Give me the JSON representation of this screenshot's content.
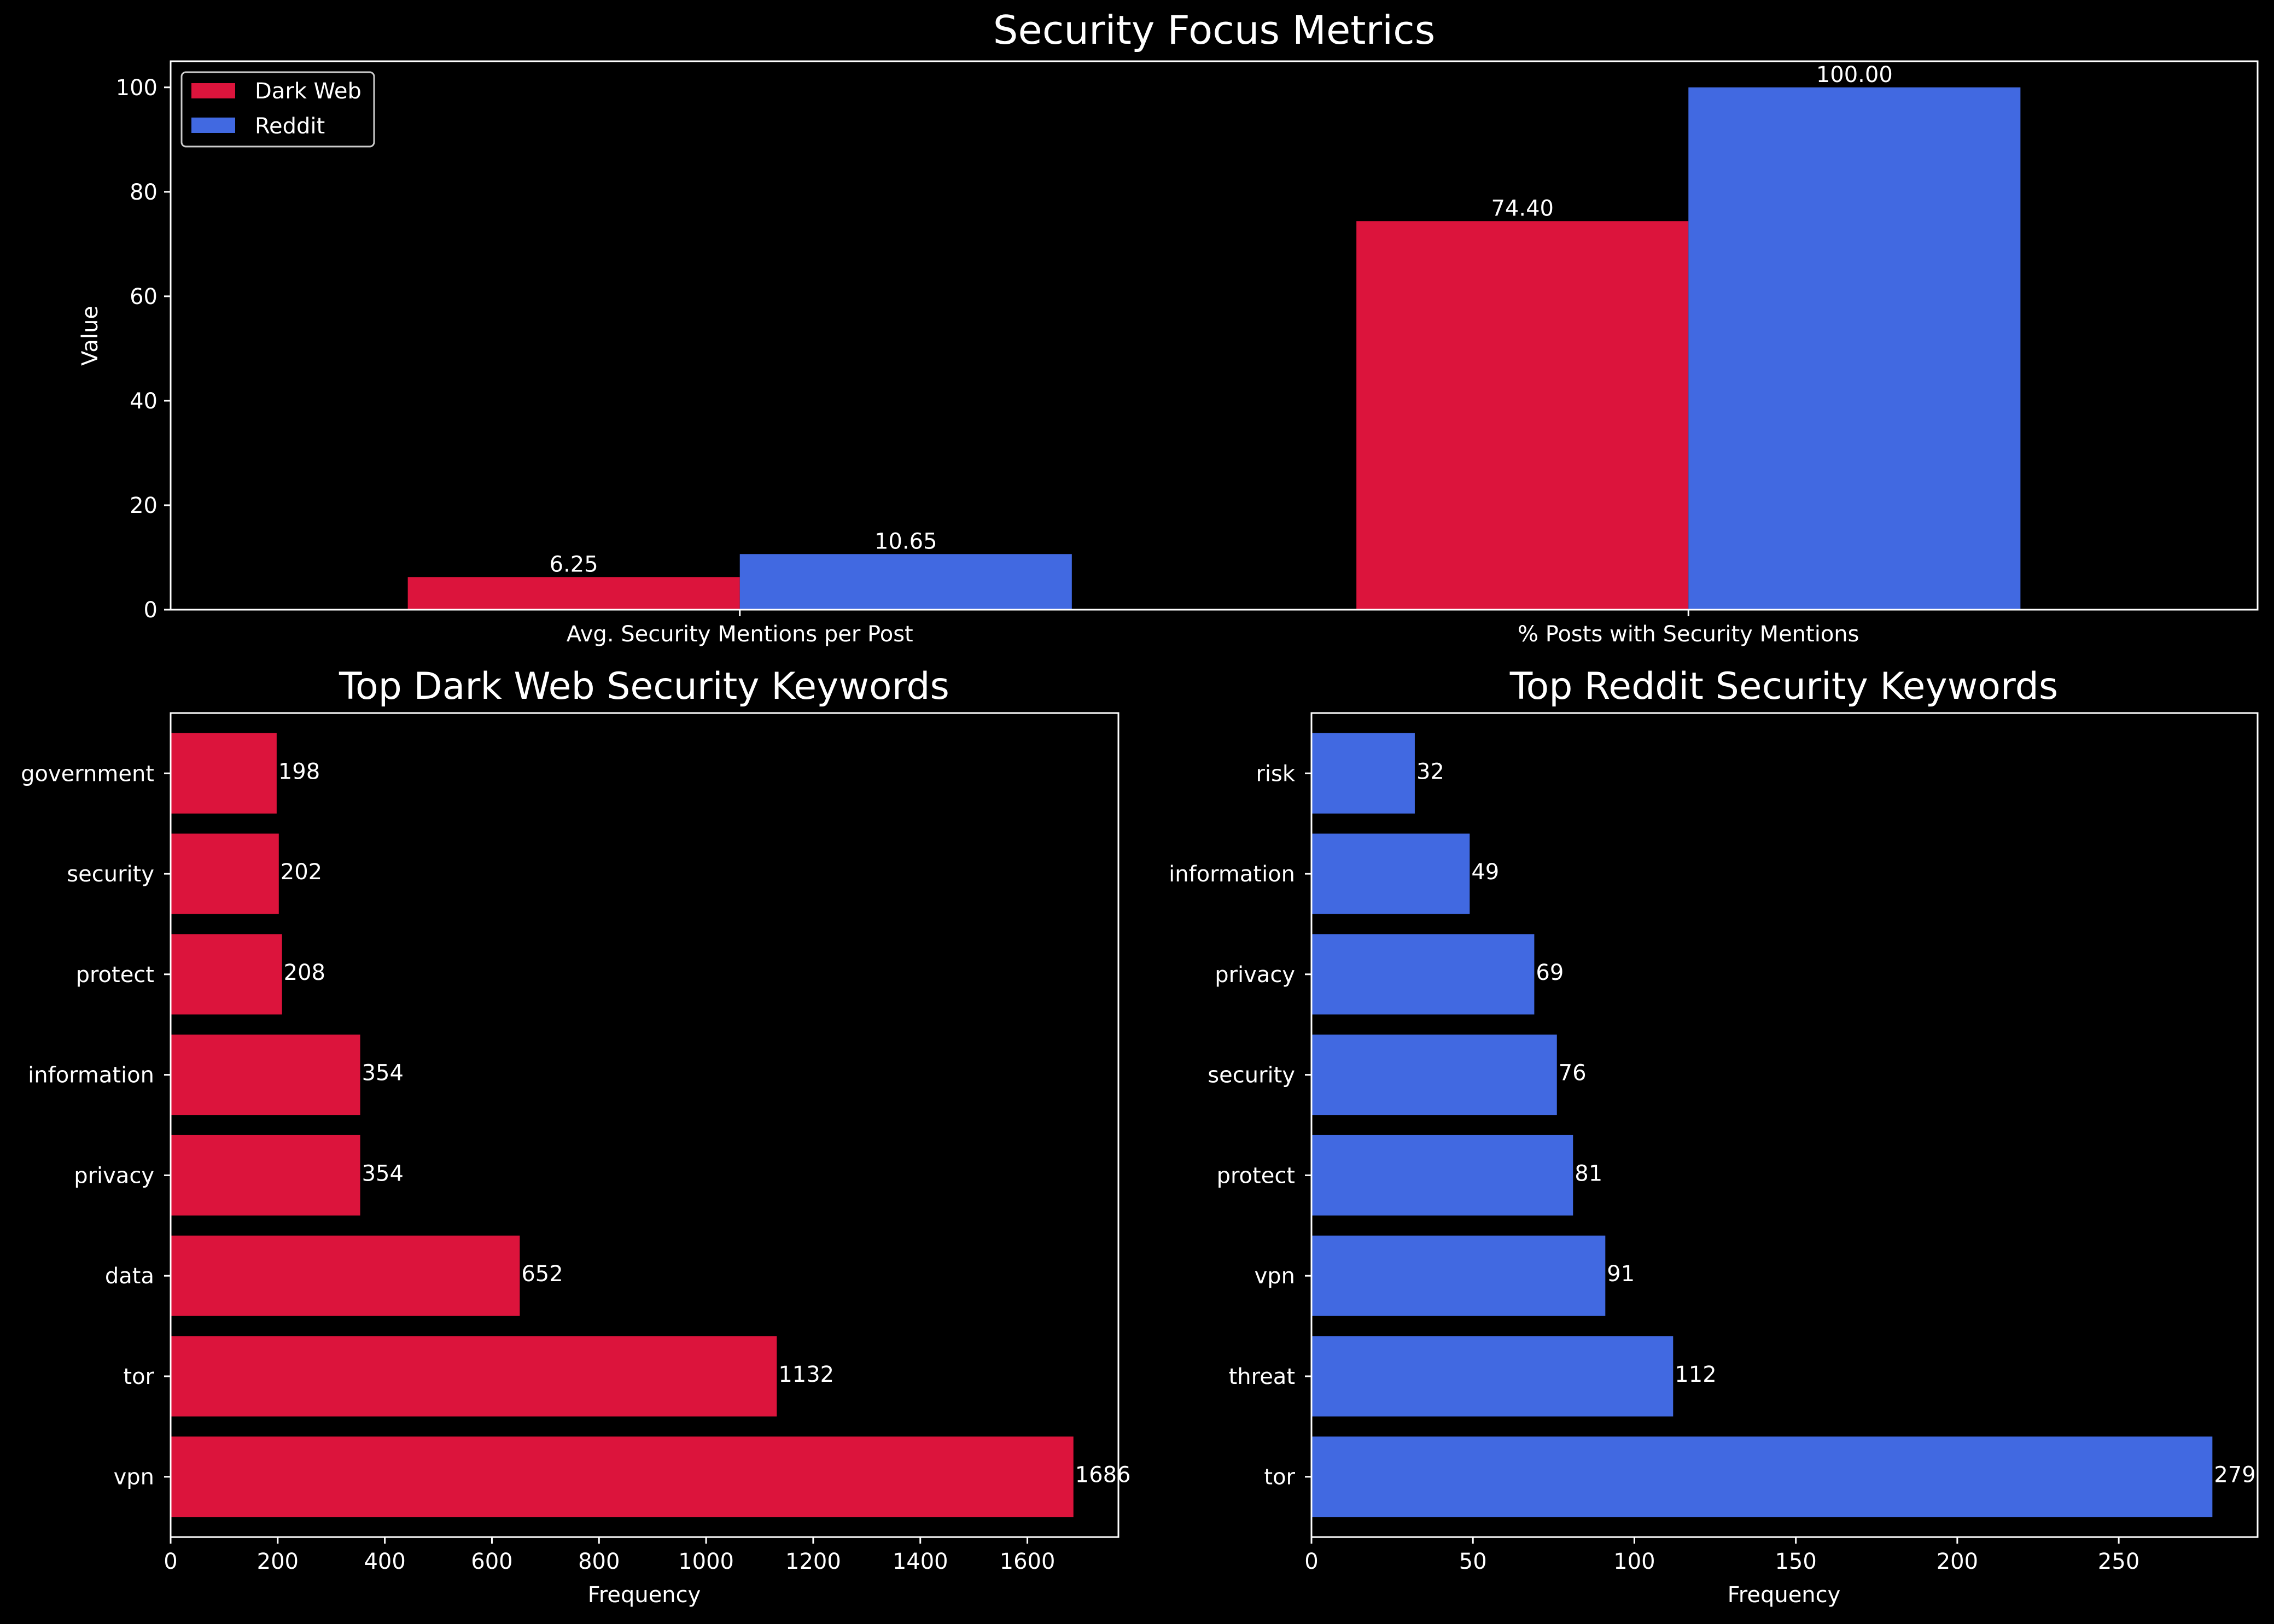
{
  "colors": {
    "background": "#000000",
    "dark_web": "#dc143c",
    "reddit": "#4169e1",
    "foreground": "#ffffff"
  },
  "chart_data": [
    {
      "type": "bar",
      "title": "Security Focus Metrics",
      "xlabel": "",
      "ylabel": "Value",
      "categories": [
        "Avg. Security Mentions per Post",
        "% Posts with Security Mentions"
      ],
      "series": [
        {
          "name": "Dark Web",
          "values": [
            6.25,
            74.4
          ],
          "labels": [
            "6.25",
            "74.40"
          ]
        },
        {
          "name": "Reddit",
          "values": [
            10.65,
            100.0
          ],
          "labels": [
            "10.65",
            "100.00"
          ]
        }
      ],
      "ylim": [
        0,
        105
      ],
      "yticks": [
        0,
        20,
        40,
        60,
        80,
        100
      ],
      "legend": "top-left",
      "grid": false
    },
    {
      "type": "bar",
      "orientation": "horizontal",
      "title": "Top Dark Web Security Keywords",
      "xlabel": "Frequency",
      "ylabel": "",
      "categories": [
        "vpn",
        "tor",
        "data",
        "privacy",
        "information",
        "protect",
        "security",
        "government"
      ],
      "values": [
        1686,
        1132,
        652,
        354,
        354,
        208,
        202,
        198
      ],
      "xlim": [
        0,
        1770
      ],
      "xticks": [
        0,
        200,
        400,
        600,
        800,
        1000,
        1200,
        1400,
        1600
      ],
      "grid": false
    },
    {
      "type": "bar",
      "orientation": "horizontal",
      "title": "Top Reddit Security Keywords",
      "xlabel": "Frequency",
      "ylabel": "",
      "categories": [
        "tor",
        "threat",
        "vpn",
        "protect",
        "security",
        "privacy",
        "information",
        "risk"
      ],
      "values": [
        279,
        112,
        91,
        81,
        76,
        69,
        49,
        32
      ],
      "xlim": [
        0,
        293
      ],
      "xticks": [
        0,
        50,
        100,
        150,
        200,
        250
      ],
      "grid": false
    }
  ]
}
